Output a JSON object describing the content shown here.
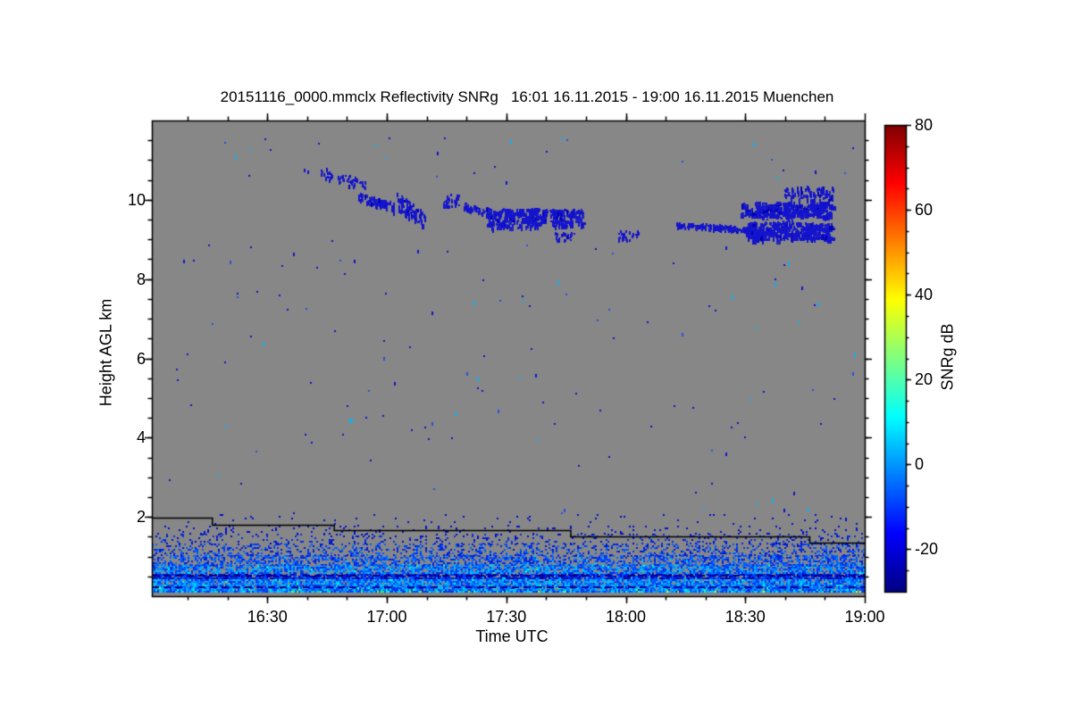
{
  "chart_data": {
    "type": "heatmap",
    "title": "20151116_0000.mmclx Reflectivity SNRg   16:01 16.11.2015 - 19:00 16.11.2015 Muenchen",
    "xlabel": "Time UTC",
    "ylabel": "Height AGL km",
    "colorbar_label": "SNRg dB",
    "x_range_hours": [
      16.0167,
      19.0
    ],
    "y_range_km": [
      0,
      12
    ],
    "colorbar_range_db": [
      -30,
      80
    ],
    "x_major_ticks": [
      {
        "hour": 16.5,
        "label": "16:30"
      },
      {
        "hour": 17.0,
        "label": "17:00"
      },
      {
        "hour": 17.5,
        "label": "17:30"
      },
      {
        "hour": 18.0,
        "label": "18:00"
      },
      {
        "hour": 18.5,
        "label": "18:30"
      },
      {
        "hour": 19.0,
        "label": "19:00"
      }
    ],
    "x_minor_step_hours": 0.166667,
    "y_major_ticks": [
      {
        "km": 2,
        "label": "2"
      },
      {
        "km": 4,
        "label": "4"
      },
      {
        "km": 6,
        "label": "6"
      },
      {
        "km": 8,
        "label": "8"
      },
      {
        "km": 10,
        "label": "10"
      }
    ],
    "y_minor_step_km": 0.5,
    "colorbar_ticks": [
      {
        "db": 80,
        "label": "80"
      },
      {
        "db": 60,
        "label": "60"
      },
      {
        "db": 40,
        "label": "40"
      },
      {
        "db": 20,
        "label": "20"
      },
      {
        "db": 0,
        "label": "0"
      },
      {
        "db": -20,
        "label": "-20"
      }
    ],
    "colorbar_minor_step_db": 5,
    "background_color": "#878787",
    "frame_color": "#000000",
    "colormap_jet_stops": [
      [
        0.0,
        "#000083"
      ],
      [
        0.125,
        "#0000ff"
      ],
      [
        0.375,
        "#00ffff"
      ],
      [
        0.625,
        "#ffff00"
      ],
      [
        0.875,
        "#ff0000"
      ],
      [
        1.0,
        "#800000"
      ]
    ],
    "cloud_speck_color": "#1414cc",
    "cloud_speck_variants": [
      "#0f0fd2",
      "#2222c4",
      "#0000b4"
    ],
    "cloud_clusters": [
      {
        "t": [
          16.72,
          16.91
        ],
        "h": [
          10.25,
          10.85
        ],
        "count": 55,
        "streak": true,
        "blob": false
      },
      {
        "t": [
          16.88,
          17.03
        ],
        "h": [
          9.72,
          10.2
        ],
        "count": 95,
        "streak": true,
        "blob": false
      },
      {
        "t": [
          17.04,
          17.16
        ],
        "h": [
          9.3,
          10.2
        ],
        "count": 85,
        "streak": true,
        "blob": false
      },
      {
        "t": [
          17.23,
          17.3
        ],
        "h": [
          9.85,
          10.15
        ],
        "count": 30,
        "streak": false,
        "blob": false
      },
      {
        "t": [
          17.32,
          17.47
        ],
        "h": [
          9.55,
          9.95
        ],
        "count": 70,
        "streak": true,
        "blob": false
      },
      {
        "t": [
          17.42,
          17.62
        ],
        "h": [
          9.3,
          9.8
        ],
        "count": 150,
        "streak": false,
        "blob": true
      },
      {
        "t": [
          17.6,
          17.82
        ],
        "h": [
          9.35,
          9.78
        ],
        "count": 140,
        "streak": false,
        "blob": true
      },
      {
        "t": [
          17.7,
          17.78
        ],
        "h": [
          9.0,
          9.2
        ],
        "count": 18,
        "streak": false,
        "blob": false
      },
      {
        "t": [
          17.96,
          18.05
        ],
        "h": [
          9.0,
          9.25
        ],
        "count": 25,
        "streak": false,
        "blob": false
      },
      {
        "t": [
          18.21,
          18.56
        ],
        "h": [
          9.2,
          9.45
        ],
        "count": 170,
        "streak": true,
        "blob": false
      },
      {
        "t": [
          18.5,
          18.86
        ],
        "h": [
          9.0,
          9.45
        ],
        "count": 330,
        "streak": false,
        "blob": true
      },
      {
        "t": [
          18.48,
          18.86
        ],
        "h": [
          9.6,
          9.95
        ],
        "count": 250,
        "streak": false,
        "blob": true
      },
      {
        "t": [
          18.66,
          18.87
        ],
        "h": [
          10.0,
          10.35
        ],
        "count": 90,
        "streak": false,
        "blob": false
      },
      {
        "t": [
          18.55,
          18.75
        ],
        "h": [
          9.4,
          9.85
        ],
        "count": 40,
        "streak": false,
        "blob": false
      }
    ],
    "scatter_specks": [
      {
        "count": 130,
        "t": [
          16.03,
          18.98
        ],
        "h": [
          2.0,
          9.0
        ]
      },
      {
        "count": 30,
        "t": [
          16.25,
          18.95
        ],
        "h": [
          10.4,
          11.6
        ]
      }
    ],
    "scatter_colors": [
      "#1414cc",
      "#1414cc",
      "#1414cc",
      "#2a50e0",
      "#00b4ff"
    ],
    "noise_layers": [
      {
        "h": [
          0.08,
          0.14
        ],
        "p": 1.0,
        "colors": [
          "#00b4ff",
          "#00d8ff",
          "#0090ff",
          "#00ffd8"
        ],
        "accents": [
          "#40ff40",
          "#d8ff00",
          "#00ff90"
        ],
        "accent_p": 0.08
      },
      {
        "h": [
          0.14,
          0.3
        ],
        "p": 0.92,
        "colors": [
          "#0048ff",
          "#0070ff",
          "#00a0ff",
          "#00ccff",
          "#0030e8"
        ],
        "accents": [
          "#00ffd0",
          "#40ff80"
        ],
        "accent_p": 0.03
      },
      {
        "h": [
          0.3,
          0.48
        ],
        "p": 0.85,
        "colors": [
          "#0038f0",
          "#0060ff",
          "#0090ff",
          "#00c0ff"
        ],
        "accents": [
          "#00ffd0"
        ],
        "accent_p": 0.02
      },
      {
        "h": [
          0.48,
          0.6
        ],
        "p": 0.8,
        "colors": [
          "#0000a8",
          "#0020d0",
          "#0048ff"
        ],
        "accents": [],
        "accent_p": 0
      },
      {
        "h": [
          0.6,
          0.8
        ],
        "p": 0.75,
        "colors": [
          "#0030e8",
          "#0058ff",
          "#0088ff",
          "#00b8ff"
        ],
        "accents": [
          "#00ffd0"
        ],
        "accent_p": 0.015
      },
      {
        "h": [
          0.8,
          1.05
        ],
        "p": 0.5,
        "colors": [
          "#0024dc",
          "#0048ff",
          "#0070ff"
        ],
        "accents": [
          "#00c8ff"
        ],
        "accent_p": 0.02
      },
      {
        "h": [
          1.05,
          1.35
        ],
        "p": 0.28,
        "colors": [
          "#0018d0",
          "#0038f0",
          "#0060ff"
        ],
        "accents": [],
        "accent_p": 0
      },
      {
        "h": [
          1.35,
          1.6
        ],
        "p": 0.14,
        "colors": [
          "#0010c8",
          "#0030e8"
        ],
        "accents": [],
        "accent_p": 0
      },
      {
        "h": [
          1.6,
          1.8
        ],
        "p": 0.07,
        "colors": [
          "#0010c8"
        ],
        "accents": [],
        "accent_p": 0
      },
      {
        "h": [
          1.8,
          2.1
        ],
        "p": 0.02,
        "colors": [
          "#0010c8"
        ],
        "accents": [],
        "accent_p": 0
      }
    ],
    "dashed_rows": [
      {
        "km": 0.53,
        "color": "#000095"
      },
      {
        "km": 0.24,
        "color": "#000095"
      }
    ],
    "blanked_bottom_km": 0.08,
    "threshold_line_km": [
      [
        16.0167,
        1.97
      ],
      [
        16.27,
        1.97
      ],
      [
        16.27,
        1.8
      ],
      [
        16.78,
        1.8
      ],
      [
        16.78,
        1.66
      ],
      [
        17.77,
        1.66
      ],
      [
        17.77,
        1.5
      ],
      [
        18.77,
        1.5
      ],
      [
        18.77,
        1.36
      ],
      [
        19.0,
        1.36
      ]
    ]
  }
}
